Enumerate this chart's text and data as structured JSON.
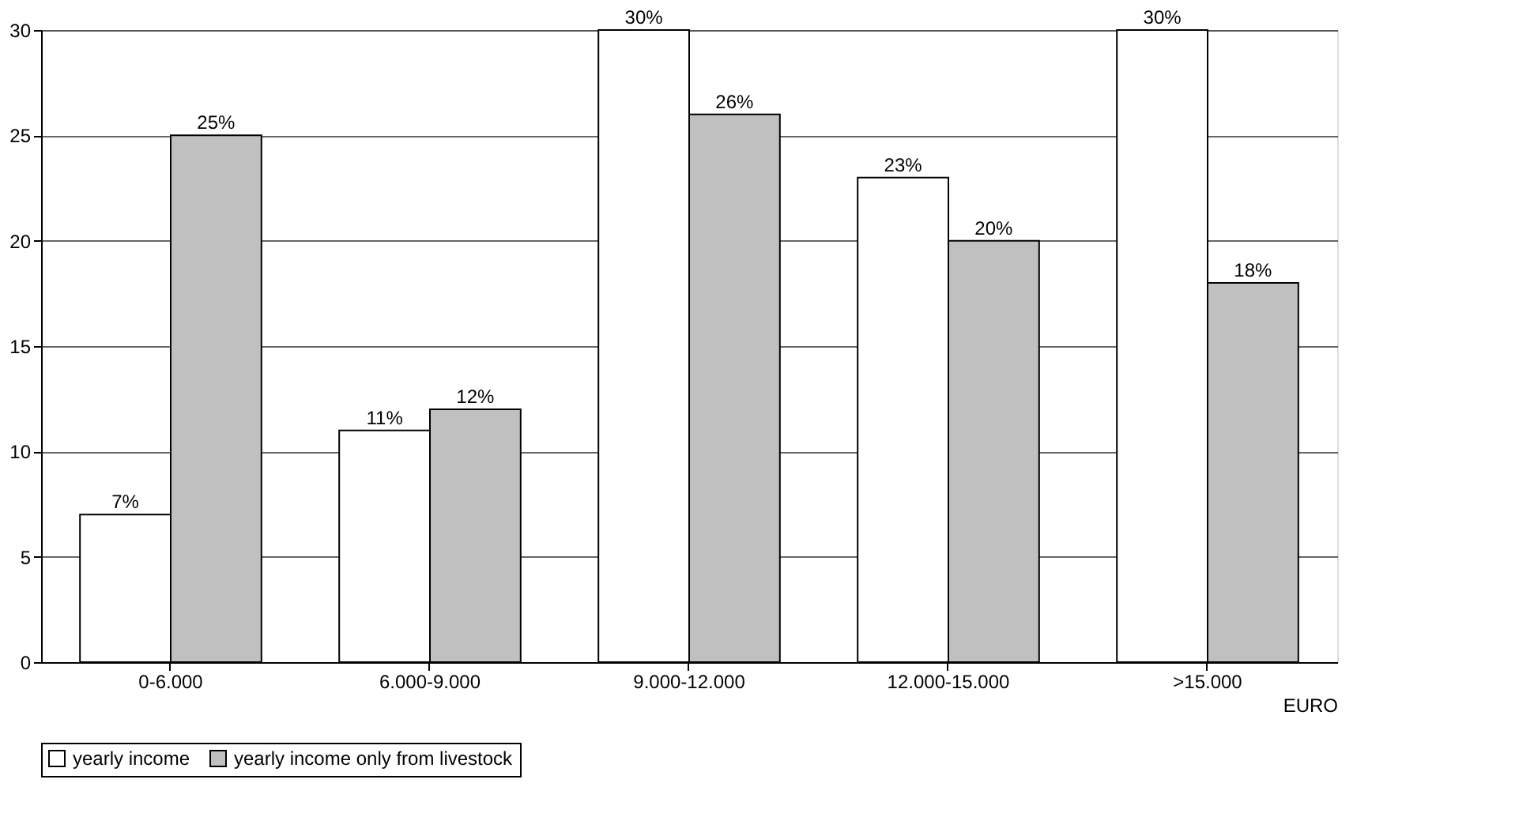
{
  "chart_data": {
    "type": "bar",
    "categories": [
      "0-6.000",
      "6.000-9.000",
      "9.000-12.000",
      "12.000-15.000",
      ">15.000"
    ],
    "xlabel": "EURO",
    "series": [
      {
        "name": "yearly income",
        "color": "#ffffff",
        "values": [
          7,
          11,
          30,
          23,
          30
        ],
        "value_labels": [
          "7%",
          "11%",
          "30%",
          "23%",
          "30%"
        ]
      },
      {
        "name": "yearly income only from livestock",
        "color": "#c0c0c0",
        "values": [
          25,
          12,
          26,
          20,
          18
        ],
        "value_labels": [
          "25%",
          "12%",
          "26%",
          "20%",
          "18%"
        ]
      }
    ],
    "ylim": [
      0,
      30
    ],
    "yticks": [
      0,
      5,
      10,
      15,
      20,
      25,
      30
    ],
    "grid": "y",
    "legend": "bottom"
  }
}
